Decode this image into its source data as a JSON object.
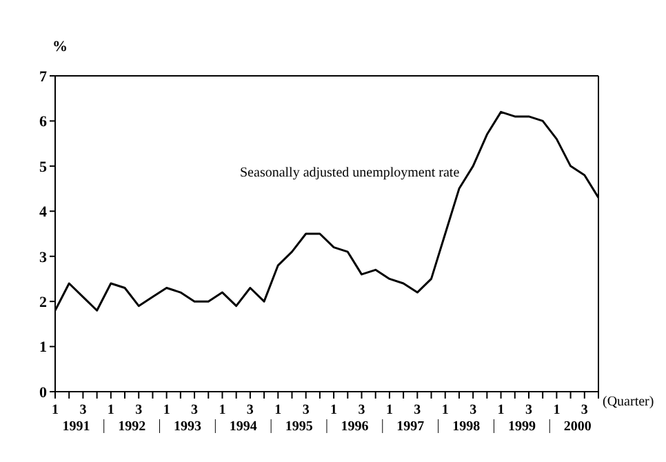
{
  "chart_data": {
    "type": "line",
    "ylabel": "%",
    "xlabel": "(Quarter)",
    "categories": [
      "1",
      null,
      "3",
      null,
      "1",
      null,
      "3",
      null,
      "1",
      null,
      "3",
      null,
      "1",
      null,
      "3",
      null,
      "1",
      null,
      "3",
      null,
      "1",
      null,
      "3",
      null,
      "1",
      null,
      "3",
      null,
      "1",
      null,
      "3",
      null,
      "1",
      null,
      "3",
      null,
      "1",
      null,
      "3",
      null
    ],
    "series": [
      {
        "color": "#000000",
        "values": [
          1.8,
          2.4,
          2.1,
          1.8,
          2.4,
          2.3,
          1.9,
          2.1,
          2.3,
          2.2,
          2.0,
          2.0,
          2.2,
          1.9,
          2.3,
          2.0,
          2.8,
          3.1,
          3.5,
          3.5,
          3.2,
          3.1,
          2.6,
          2.7,
          2.5,
          2.4,
          2.2,
          2.5,
          3.5,
          4.5,
          5.0,
          5.7,
          6.2,
          6.1,
          6.1,
          6.0,
          5.6,
          5.0,
          4.8,
          4.3
        ]
      }
    ],
    "ylim": [
      0,
      7
    ],
    "yticks": [
      0,
      1,
      2,
      3,
      4,
      5,
      6,
      7
    ],
    "grid": false,
    "legend": false,
    "marker": "none",
    "line_style": "solid",
    "annotations": [
      "Seasonally adjusted unemployment rate",
      "1991",
      "1992",
      "1993",
      "1994",
      "1995",
      "1996",
      "1997",
      "1998",
      "1999",
      "2000"
    ]
  }
}
